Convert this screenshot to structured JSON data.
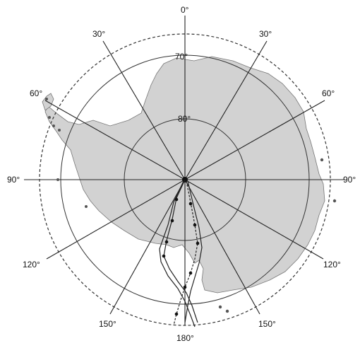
{
  "map": {
    "colors": {
      "land": "#d2d2d2",
      "coast": "#777777",
      "lines": "#222222",
      "background": "#ffffff"
    },
    "labels": {
      "top": "0°",
      "upper_left": "30°",
      "upper_right": "30°",
      "left_60": "60°",
      "right_60": "60°",
      "left_90": "90°",
      "right_90": "90°",
      "left_120": "120°",
      "right_120": "120°",
      "lower_left": "150°",
      "lower_right": "150°",
      "bottom": "180°",
      "ring_80": "80°",
      "ring_70": "70°"
    }
  }
}
